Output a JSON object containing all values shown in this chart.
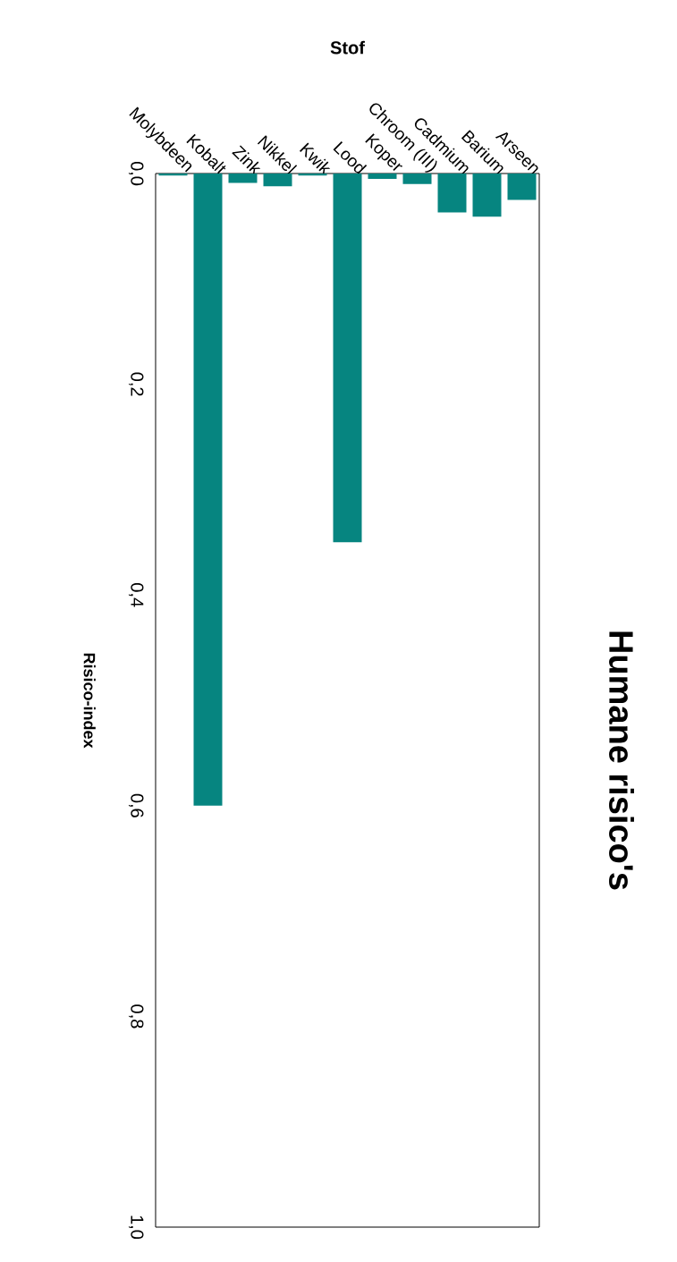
{
  "chart_data": {
    "type": "bar",
    "title": "Humane risico's",
    "xlabel": "Stof",
    "ylabel": "Risico-index",
    "categories": [
      "Molybdeen",
      "Kobalt",
      "Zink",
      "Nikkel",
      "Kwik",
      "Lood",
      "Koper",
      "Chroom (III)",
      "Cadmium",
      "Barium",
      "Arseen"
    ],
    "values": [
      0.002,
      0.6,
      0.009,
      0.012,
      0.002,
      0.35,
      0.005,
      0.01,
      0.037,
      0.041,
      0.025
    ],
    "color": "#068580",
    "ylim": [
      1.0,
      0.0
    ],
    "yticks": [
      {
        "value": 0.0,
        "label": "0,0"
      },
      {
        "value": 0.2,
        "label": "0,2"
      },
      {
        "value": 0.4,
        "label": "0,4"
      },
      {
        "value": 0.6,
        "label": "0,6"
      },
      {
        "value": 0.8,
        "label": "0,8"
      },
      {
        "value": 1.0,
        "label": "1,0"
      }
    ],
    "grid": false
  }
}
